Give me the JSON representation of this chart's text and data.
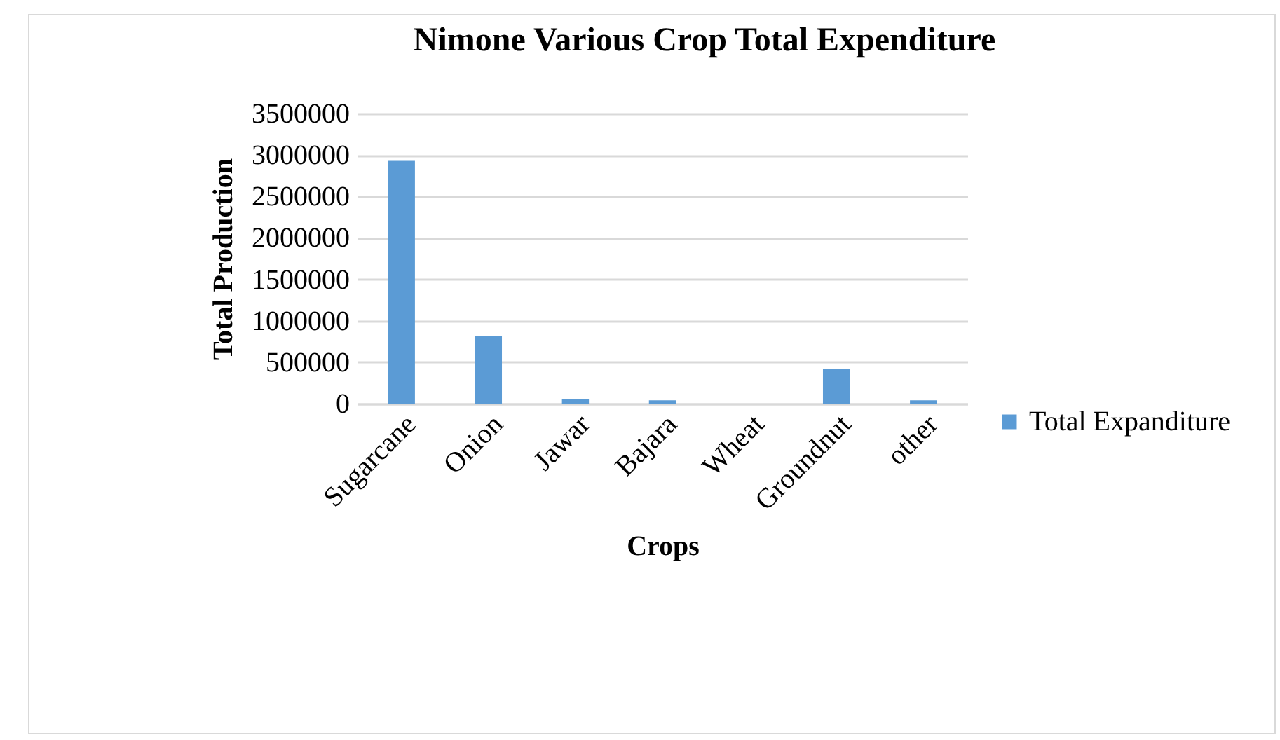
{
  "chart_data": {
    "type": "bar",
    "title": "Nimone Various  Crop  Total Expenditure",
    "xlabel": "Crops",
    "ylabel": "Total Production",
    "categories": [
      "Sugarcane",
      "Onion",
      "Jawar",
      "Bajara",
      "Wheat",
      "Groundnut",
      "other"
    ],
    "series": [
      {
        "name": "Total Expanditure",
        "color": "#5b9bd5",
        "values": [
          2930000,
          820000,
          50000,
          40000,
          0,
          420000,
          40000
        ]
      }
    ],
    "ylim": [
      0,
      3500000
    ],
    "yticks": [
      0,
      500000,
      1000000,
      1500000,
      2000000,
      2500000,
      3000000,
      3500000
    ],
    "grid": "y",
    "legend": "right"
  }
}
